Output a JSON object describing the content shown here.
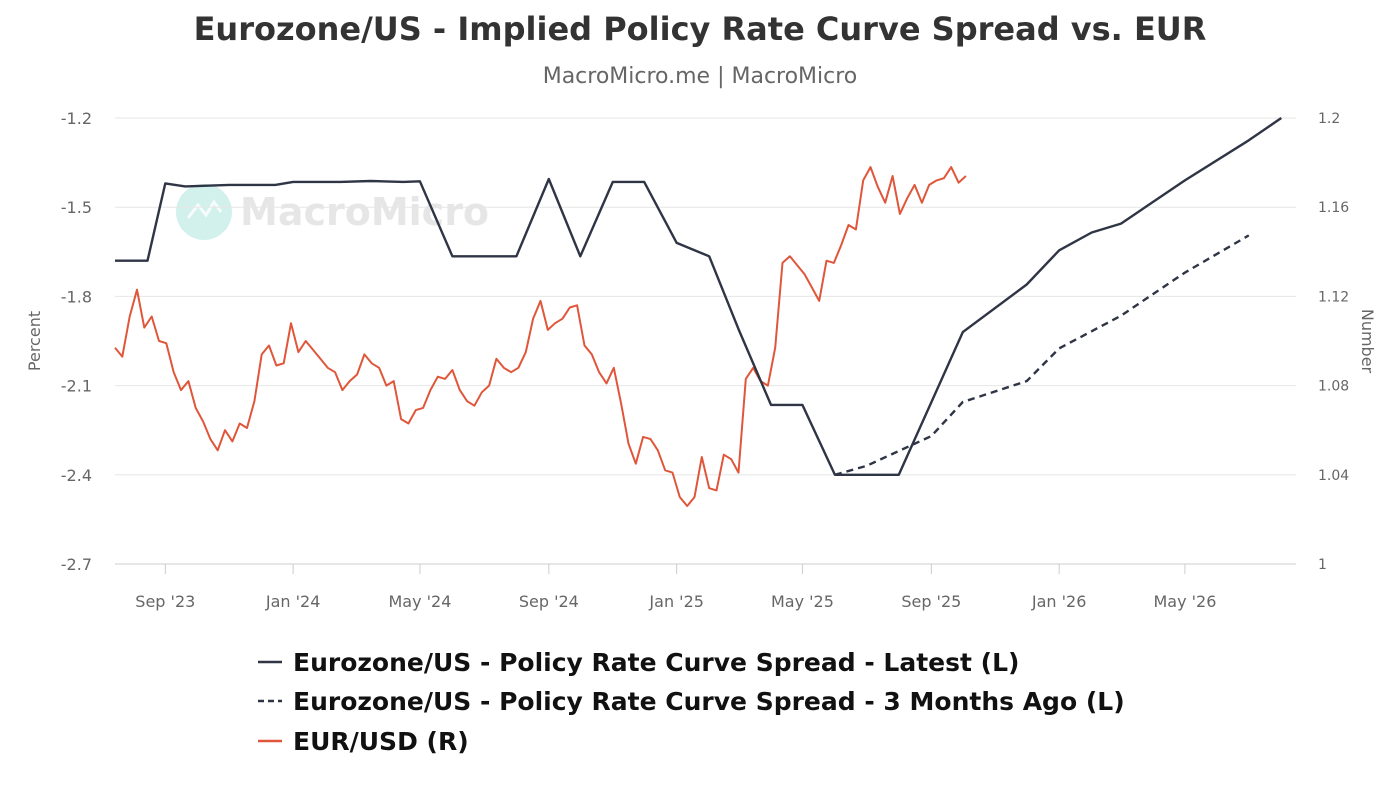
{
  "title": "Eurozone/US - Implied Policy Rate Curve Spread vs. EUR",
  "subtitle": "MacroMicro.me | MacroMicro",
  "watermark": "MacroMicro",
  "colors": {
    "latest": "#2f3545",
    "three_months": "#2f3545",
    "eurusd": "#e0563a",
    "grid": "#e6e6e6",
    "watermark": "#7fd8c8"
  },
  "chart_data": {
    "type": "line",
    "x_axis": {
      "type": "date",
      "range": [
        "2023-07-15",
        "2026-08-15"
      ],
      "ticks": [
        {
          "date": "2023-09-01",
          "label": "Sep '23"
        },
        {
          "date": "2024-01-01",
          "label": "Jan '24"
        },
        {
          "date": "2024-05-01",
          "label": "May '24"
        },
        {
          "date": "2024-09-01",
          "label": "Sep '24"
        },
        {
          "date": "2025-01-01",
          "label": "Jan '25"
        },
        {
          "date": "2025-05-01",
          "label": "May '25"
        },
        {
          "date": "2025-09-01",
          "label": "Sep '25"
        },
        {
          "date": "2026-01-01",
          "label": "Jan '26"
        },
        {
          "date": "2026-05-01",
          "label": "May '26"
        }
      ]
    },
    "y_left": {
      "label": "Percent",
      "min": -2.7,
      "max": -1.2,
      "ticks": [
        -1.2,
        -1.5,
        -1.8,
        -2.1,
        -2.4,
        -2.7
      ],
      "tick_labels": [
        "-1.2",
        "-1.5",
        "-1.8",
        "-2.1",
        "-2.4",
        "-2.7"
      ]
    },
    "y_right": {
      "label": "Number",
      "min": 1.0,
      "max": 1.2,
      "ticks": [
        1.2,
        1.16,
        1.12,
        1.08,
        1.04,
        1.0
      ],
      "tick_labels": [
        "1.2",
        "1.16",
        "1.12",
        "1.08",
        "1.04",
        "1"
      ]
    },
    "grid": true,
    "legend_position": "bottom",
    "series": [
      {
        "name": "Eurozone/US - Policy Rate Curve Spread - Latest (L)",
        "axis": "left",
        "style": "solid",
        "points": [
          [
            "2023-07-15",
            -1.68
          ],
          [
            "2023-08-15",
            -1.68
          ],
          [
            "2023-09-01",
            -1.42
          ],
          [
            "2023-09-20",
            -1.43
          ],
          [
            "2023-11-01",
            -1.425
          ],
          [
            "2023-12-15",
            -1.425
          ],
          [
            "2024-01-01",
            -1.415
          ],
          [
            "2024-02-15",
            -1.415
          ],
          [
            "2024-03-15",
            -1.412
          ],
          [
            "2024-04-15",
            -1.415
          ],
          [
            "2024-05-01",
            -1.413
          ],
          [
            "2024-06-01",
            -1.665
          ],
          [
            "2024-07-20",
            -1.665
          ],
          [
            "2024-08-01",
            -1.665
          ],
          [
            "2024-09-01",
            -1.405
          ],
          [
            "2024-10-01",
            -1.665
          ],
          [
            "2024-11-01",
            -1.415
          ],
          [
            "2024-12-01",
            -1.415
          ],
          [
            "2025-01-01",
            -1.62
          ],
          [
            "2025-02-01",
            -1.665
          ],
          [
            "2025-03-01",
            -1.91
          ],
          [
            "2025-04-01",
            -2.165
          ],
          [
            "2025-05-01",
            -2.165
          ],
          [
            "2025-06-01",
            -2.4
          ],
          [
            "2025-07-01",
            -2.4
          ],
          [
            "2025-08-01",
            -2.4
          ],
          [
            "2025-10-01",
            -1.92
          ],
          [
            "2025-12-01",
            -1.76
          ],
          [
            "2026-01-01",
            -1.645
          ],
          [
            "2026-02-01",
            -1.585
          ],
          [
            "2026-03-01",
            -1.555
          ],
          [
            "2026-05-01",
            -1.41
          ],
          [
            "2026-07-01",
            -1.275
          ],
          [
            "2026-08-01",
            -1.2
          ]
        ]
      },
      {
        "name": "Eurozone/US - Policy Rate Curve Spread - 3 Months Ago (L)",
        "axis": "left",
        "style": "dashed",
        "points": [
          [
            "2025-06-01",
            -2.4
          ],
          [
            "2025-07-01",
            -2.37
          ],
          [
            "2025-08-01",
            -2.32
          ],
          [
            "2025-09-01",
            -2.27
          ],
          [
            "2025-10-01",
            -2.155
          ],
          [
            "2025-12-01",
            -2.085
          ],
          [
            "2026-01-01",
            -1.975
          ],
          [
            "2026-03-01",
            -1.865
          ],
          [
            "2026-05-01",
            -1.72
          ],
          [
            "2026-07-01",
            -1.595
          ]
        ]
      },
      {
        "name": "EUR/USD (R)",
        "axis": "right",
        "style": "solid",
        "points": [
          [
            "2023-07-15",
            1.097
          ],
          [
            "2023-07-22",
            1.093
          ],
          [
            "2023-07-29",
            1.111
          ],
          [
            "2023-08-05",
            1.123
          ],
          [
            "2023-08-12",
            1.106
          ],
          [
            "2023-08-19",
            1.111
          ],
          [
            "2023-08-26",
            1.1
          ],
          [
            "2023-09-02",
            1.099
          ],
          [
            "2023-09-09",
            1.086
          ],
          [
            "2023-09-16",
            1.078
          ],
          [
            "2023-09-23",
            1.082
          ],
          [
            "2023-09-30",
            1.07
          ],
          [
            "2023-10-07",
            1.064
          ],
          [
            "2023-10-14",
            1.056
          ],
          [
            "2023-10-21",
            1.051
          ],
          [
            "2023-10-28",
            1.06
          ],
          [
            "2023-11-04",
            1.055
          ],
          [
            "2023-11-11",
            1.063
          ],
          [
            "2023-11-18",
            1.061
          ],
          [
            "2023-11-25",
            1.073
          ],
          [
            "2023-12-02",
            1.094
          ],
          [
            "2023-12-09",
            1.098
          ],
          [
            "2023-12-16",
            1.089
          ],
          [
            "2023-12-23",
            1.09
          ],
          [
            "2023-12-30",
            1.108
          ],
          [
            "2024-01-06",
            1.095
          ],
          [
            "2024-01-13",
            1.1
          ],
          [
            "2024-01-20",
            1.096
          ],
          [
            "2024-01-27",
            1.092
          ],
          [
            "2024-02-03",
            1.088
          ],
          [
            "2024-02-10",
            1.086
          ],
          [
            "2024-02-17",
            1.078
          ],
          [
            "2024-02-24",
            1.082
          ],
          [
            "2024-03-02",
            1.085
          ],
          [
            "2024-03-09",
            1.094
          ],
          [
            "2024-03-16",
            1.09
          ],
          [
            "2024-03-23",
            1.088
          ],
          [
            "2024-03-30",
            1.08
          ],
          [
            "2024-04-06",
            1.082
          ],
          [
            "2024-04-13",
            1.065
          ],
          [
            "2024-04-20",
            1.063
          ],
          [
            "2024-04-27",
            1.069
          ],
          [
            "2024-05-04",
            1.07
          ],
          [
            "2024-05-11",
            1.078
          ],
          [
            "2024-05-18",
            1.084
          ],
          [
            "2024-05-25",
            1.083
          ],
          [
            "2024-06-01",
            1.087
          ],
          [
            "2024-06-08",
            1.078
          ],
          [
            "2024-06-15",
            1.073
          ],
          [
            "2024-06-22",
            1.071
          ],
          [
            "2024-06-29",
            1.077
          ],
          [
            "2024-07-06",
            1.08
          ],
          [
            "2024-07-13",
            1.092
          ],
          [
            "2024-07-20",
            1.088
          ],
          [
            "2024-07-27",
            1.086
          ],
          [
            "2024-08-03",
            1.088
          ],
          [
            "2024-08-10",
            1.095
          ],
          [
            "2024-08-17",
            1.11
          ],
          [
            "2024-08-24",
            1.118
          ],
          [
            "2024-08-31",
            1.105
          ],
          [
            "2024-09-07",
            1.108
          ],
          [
            "2024-09-14",
            1.11
          ],
          [
            "2024-09-21",
            1.115
          ],
          [
            "2024-09-28",
            1.116
          ],
          [
            "2024-10-05",
            1.098
          ],
          [
            "2024-10-12",
            1.094
          ],
          [
            "2024-10-19",
            1.086
          ],
          [
            "2024-10-26",
            1.081
          ],
          [
            "2024-11-02",
            1.088
          ],
          [
            "2024-11-09",
            1.072
          ],
          [
            "2024-11-16",
            1.054
          ],
          [
            "2024-11-23",
            1.045
          ],
          [
            "2024-11-30",
            1.057
          ],
          [
            "2024-12-07",
            1.056
          ],
          [
            "2024-12-14",
            1.051
          ],
          [
            "2024-12-21",
            1.042
          ],
          [
            "2024-12-28",
            1.041
          ],
          [
            "2025-01-04",
            1.03
          ],
          [
            "2025-01-11",
            1.026
          ],
          [
            "2025-01-18",
            1.03
          ],
          [
            "2025-01-25",
            1.048
          ],
          [
            "2025-02-01",
            1.034
          ],
          [
            "2025-02-08",
            1.033
          ],
          [
            "2025-02-15",
            1.049
          ],
          [
            "2025-02-22",
            1.047
          ],
          [
            "2025-03-01",
            1.041
          ],
          [
            "2025-03-08",
            1.083
          ],
          [
            "2025-03-15",
            1.088
          ],
          [
            "2025-03-22",
            1.082
          ],
          [
            "2025-03-29",
            1.08
          ],
          [
            "2025-04-05",
            1.097
          ],
          [
            "2025-04-12",
            1.135
          ],
          [
            "2025-04-19",
            1.138
          ],
          [
            "2025-04-26",
            1.134
          ],
          [
            "2025-05-03",
            1.13
          ],
          [
            "2025-05-10",
            1.124
          ],
          [
            "2025-05-17",
            1.118
          ],
          [
            "2025-05-24",
            1.136
          ],
          [
            "2025-05-31",
            1.135
          ],
          [
            "2025-06-07",
            1.143
          ],
          [
            "2025-06-14",
            1.152
          ],
          [
            "2025-06-21",
            1.15
          ],
          [
            "2025-06-28",
            1.172
          ],
          [
            "2025-07-05",
            1.178
          ],
          [
            "2025-07-12",
            1.169
          ],
          [
            "2025-07-19",
            1.162
          ],
          [
            "2025-07-26",
            1.174
          ],
          [
            "2025-08-02",
            1.157
          ],
          [
            "2025-08-09",
            1.164
          ],
          [
            "2025-08-16",
            1.17
          ],
          [
            "2025-08-23",
            1.162
          ],
          [
            "2025-08-30",
            1.17
          ],
          [
            "2025-09-06",
            1.172
          ],
          [
            "2025-09-13",
            1.173
          ],
          [
            "2025-09-20",
            1.178
          ],
          [
            "2025-09-27",
            1.171
          ],
          [
            "2025-10-04",
            1.174
          ]
        ]
      }
    ]
  },
  "legend": [
    {
      "label": "Eurozone/US - Policy Rate Curve Spread - Latest (L)",
      "style": "solid",
      "color": "#2f3545"
    },
    {
      "label": "Eurozone/US - Policy Rate Curve Spread - 3 Months Ago (L)",
      "style": "dashed",
      "color": "#2f3545"
    },
    {
      "label": "EUR/USD (R)",
      "style": "solid",
      "color": "#e0563a"
    }
  ]
}
